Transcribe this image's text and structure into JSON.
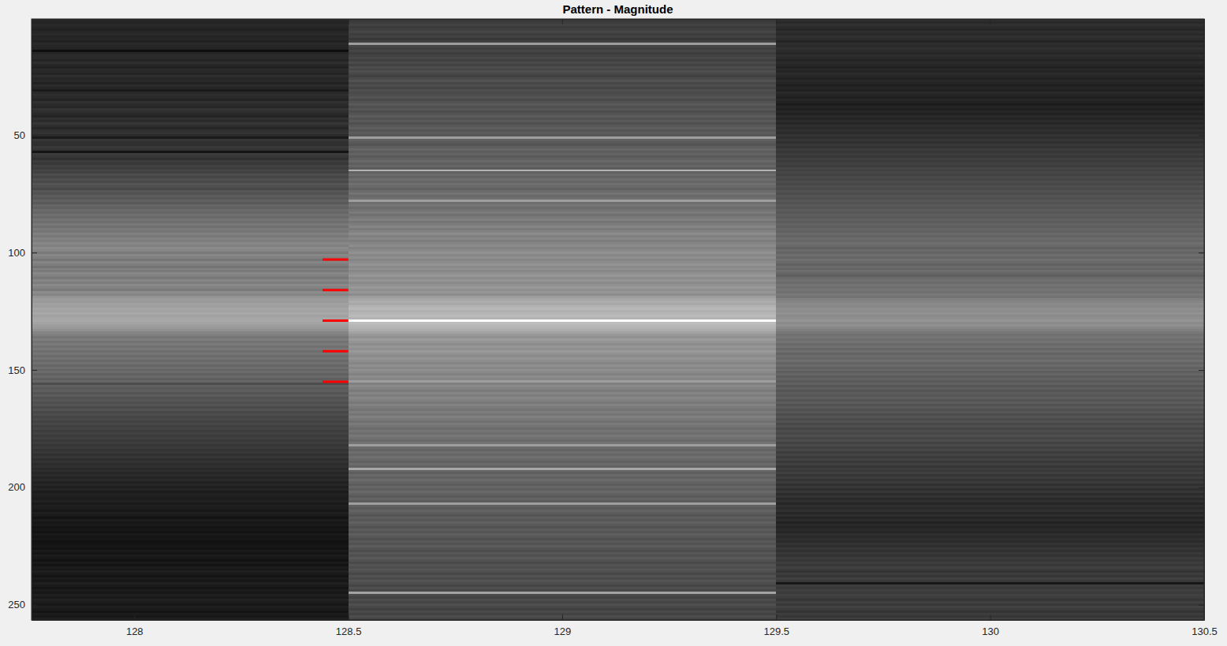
{
  "chart_data": {
    "type": "heatmap",
    "title": "Pattern - Magnitude",
    "color": "gray",
    "clim": [
      0,
      1
    ],
    "x": [
      128,
      129,
      130
    ],
    "y": [
      1,
      2,
      3,
      4,
      5,
      6,
      7,
      8,
      9,
      10,
      11,
      12,
      13,
      14,
      15,
      16,
      17,
      18,
      19,
      20,
      21,
      22,
      23,
      24,
      25,
      26,
      27,
      28,
      29,
      30,
      31,
      32,
      33,
      34,
      35,
      36,
      37,
      38,
      39,
      40,
      41,
      42,
      43,
      44,
      45,
      46,
      47,
      48,
      49,
      50,
      51,
      52,
      53,
      54,
      55,
      56,
      57,
      58,
      59,
      60,
      61,
      62,
      63,
      64,
      65,
      66,
      67,
      68,
      69,
      70,
      71,
      72,
      73,
      74,
      75,
      76,
      77,
      78,
      79,
      80,
      81,
      82,
      83,
      84,
      85,
      86,
      87,
      88,
      89,
      90,
      91,
      92,
      93,
      94,
      95,
      96,
      97,
      98,
      99,
      100,
      101,
      102,
      103,
      104,
      105,
      106,
      107,
      108,
      109,
      110,
      111,
      112,
      113,
      114,
      115,
      116,
      117,
      118,
      119,
      120,
      121,
      122,
      123,
      124,
      125,
      126,
      127,
      128,
      129,
      130,
      131,
      132,
      133,
      134,
      135,
      136,
      137,
      138,
      139,
      140,
      141,
      142,
      143,
      144,
      145,
      146,
      147,
      148,
      149,
      150,
      151,
      152,
      153,
      154,
      155,
      156,
      157,
      158,
      159,
      160,
      161,
      162,
      163,
      164,
      165,
      166,
      167,
      168,
      169,
      170,
      171,
      172,
      173,
      174,
      175,
      176,
      177,
      178,
      179,
      180,
      181,
      182,
      183,
      184,
      185,
      186,
      187,
      188,
      189,
      190,
      191,
      192,
      193,
      194,
      195,
      196,
      197,
      198,
      199,
      200,
      201,
      202,
      203,
      204,
      205,
      206,
      207,
      208,
      209,
      210,
      211,
      212,
      213,
      214,
      215,
      216,
      217,
      218,
      219,
      220,
      221,
      222,
      223,
      224,
      225,
      226,
      227,
      228,
      229,
      230,
      231,
      232,
      233,
      234,
      235,
      236,
      237,
      238,
      239,
      240,
      241,
      242,
      243,
      244,
      245,
      246,
      247,
      248,
      249,
      250,
      251,
      252,
      253,
      254,
      255,
      256
    ],
    "values": [
      [
        0.15,
        0.14,
        0.16,
        0.15,
        0.13,
        0.15,
        0.16,
        0.14,
        0.15,
        0.13,
        0.16,
        0.15,
        0.14,
        0.06,
        0.15,
        0.17,
        0.16,
        0.14,
        0.18,
        0.15,
        0.13,
        0.17,
        0.16,
        0.14,
        0.18,
        0.15,
        0.16,
        0.13,
        0.17,
        0.15,
        0.1,
        0.16,
        0.18,
        0.16,
        0.14,
        0.19,
        0.17,
        0.15,
        0.2,
        0.18,
        0.16,
        0.14,
        0.19,
        0.17,
        0.21,
        0.18,
        0.15,
        0.19,
        0.2,
        0.17,
        0.1,
        0.21,
        0.19,
        0.18,
        0.22,
        0.2,
        0.08,
        0.23,
        0.21,
        0.19,
        0.24,
        0.22,
        0.26,
        0.24,
        0.28,
        0.26,
        0.3,
        0.27,
        0.31,
        0.29,
        0.33,
        0.31,
        0.28,
        0.34,
        0.32,
        0.36,
        0.34,
        0.38,
        0.35,
        0.4,
        0.38,
        0.42,
        0.4,
        0.44,
        0.41,
        0.45,
        0.43,
        0.47,
        0.44,
        0.48,
        0.46,
        0.5,
        0.47,
        0.51,
        0.49,
        0.53,
        0.5,
        0.54,
        0.52,
        0.48,
        0.53,
        0.5,
        0.46,
        0.52,
        0.49,
        0.45,
        0.51,
        0.48,
        0.53,
        0.5,
        0.47,
        0.52,
        0.49,
        0.54,
        0.51,
        0.48,
        0.55,
        0.52,
        0.58,
        0.61,
        0.6,
        0.63,
        0.62,
        0.65,
        0.64,
        0.66,
        0.63,
        0.65,
        0.66,
        0.64,
        0.62,
        0.6,
        0.57,
        0.52,
        0.5,
        0.46,
        0.49,
        0.45,
        0.48,
        0.44,
        0.47,
        0.43,
        0.46,
        0.42,
        0.45,
        0.41,
        0.44,
        0.4,
        0.43,
        0.39,
        0.42,
        0.38,
        0.41,
        0.37,
        0.4,
        0.3,
        0.38,
        0.35,
        0.37,
        0.33,
        0.36,
        0.32,
        0.34,
        0.31,
        0.33,
        0.29,
        0.32,
        0.28,
        0.3,
        0.27,
        0.29,
        0.26,
        0.28,
        0.25,
        0.27,
        0.24,
        0.26,
        0.23,
        0.25,
        0.22,
        0.24,
        0.21,
        0.23,
        0.2,
        0.22,
        0.19,
        0.21,
        0.18,
        0.2,
        0.17,
        0.19,
        0.16,
        0.18,
        0.15,
        0.17,
        0.14,
        0.16,
        0.13,
        0.15,
        0.12,
        0.14,
        0.11,
        0.13,
        0.12,
        0.11,
        0.13,
        0.1,
        0.12,
        0.11,
        0.09,
        0.12,
        0.1,
        0.08,
        0.11,
        0.09,
        0.1,
        0.08,
        0.09,
        0.07,
        0.1,
        0.08,
        0.09,
        0.07,
        0.08,
        0.09,
        0.07,
        0.1,
        0.08,
        0.11,
        0.09,
        0.07,
        0.1,
        0.08,
        0.11,
        0.09,
        0.12,
        0.1,
        0.08,
        0.11,
        0.09,
        0.12,
        0.1,
        0.08,
        0.11,
        0.09,
        0.12,
        0.1,
        0.13,
        0.11,
        0.09,
        0.12,
        0.1,
        0.08,
        0.11,
        0.09,
        0.12
      ],
      [
        0.22,
        0.24,
        0.26,
        0.23,
        0.25,
        0.27,
        0.24,
        0.26,
        0.22,
        0.25,
        0.62,
        0.28,
        0.25,
        0.27,
        0.24,
        0.26,
        0.28,
        0.25,
        0.29,
        0.26,
        0.3,
        0.27,
        0.31,
        0.28,
        0.25,
        0.29,
        0.32,
        0.28,
        0.3,
        0.27,
        0.31,
        0.29,
        0.3,
        0.33,
        0.29,
        0.32,
        0.35,
        0.31,
        0.34,
        0.3,
        0.33,
        0.36,
        0.32,
        0.35,
        0.31,
        0.34,
        0.37,
        0.33,
        0.36,
        0.34,
        0.62,
        0.38,
        0.35,
        0.33,
        0.37,
        0.4,
        0.36,
        0.39,
        0.35,
        0.38,
        0.41,
        0.37,
        0.4,
        0.36,
        0.7,
        0.38,
        0.42,
        0.39,
        0.43,
        0.4,
        0.44,
        0.41,
        0.38,
        0.42,
        0.45,
        0.41,
        0.44,
        0.62,
        0.43,
        0.46,
        0.42,
        0.45,
        0.48,
        0.44,
        0.47,
        0.5,
        0.46,
        0.49,
        0.52,
        0.48,
        0.51,
        0.55,
        0.5,
        0.53,
        0.49,
        0.52,
        0.55,
        0.51,
        0.54,
        0.57,
        0.53,
        0.56,
        0.52,
        0.55,
        0.58,
        0.54,
        0.57,
        0.53,
        0.56,
        0.59,
        0.55,
        0.58,
        0.54,
        0.57,
        0.6,
        0.56,
        0.59,
        0.55,
        0.62,
        0.65,
        0.68,
        0.66,
        0.7,
        0.72,
        0.69,
        0.71,
        0.73,
        0.7,
        1.0,
        0.74,
        0.72,
        0.7,
        0.68,
        0.64,
        0.6,
        0.57,
        0.61,
        0.58,
        0.55,
        0.59,
        0.56,
        0.6,
        0.57,
        0.54,
        0.58,
        0.55,
        0.52,
        0.56,
        0.53,
        0.57,
        0.54,
        0.51,
        0.55,
        0.52,
        0.62,
        0.5,
        0.54,
        0.51,
        0.48,
        0.52,
        0.49,
        0.53,
        0.5,
        0.47,
        0.51,
        0.48,
        0.45,
        0.49,
        0.46,
        0.5,
        0.47,
        0.44,
        0.48,
        0.45,
        0.42,
        0.46,
        0.43,
        0.47,
        0.44,
        0.41,
        0.45,
        0.62,
        0.42,
        0.39,
        0.43,
        0.4,
        0.44,
        0.41,
        0.38,
        0.42,
        0.39,
        0.66,
        0.4,
        0.37,
        0.41,
        0.38,
        0.42,
        0.39,
        0.36,
        0.4,
        0.37,
        0.41,
        0.38,
        0.35,
        0.39,
        0.36,
        0.62,
        0.38,
        0.35,
        0.39,
        0.36,
        0.33,
        0.37,
        0.34,
        0.38,
        0.35,
        0.32,
        0.36,
        0.33,
        0.37,
        0.34,
        0.31,
        0.35,
        0.32,
        0.36,
        0.33,
        0.3,
        0.34,
        0.31,
        0.35,
        0.32,
        0.29,
        0.33,
        0.3,
        0.34,
        0.31,
        0.28,
        0.32,
        0.29,
        0.33,
        0.3,
        0.27,
        0.31,
        0.28,
        0.64,
        0.29,
        0.26,
        0.3,
        0.27,
        0.31,
        0.28,
        0.25,
        0.29,
        0.26,
        0.3,
        0.27
      ],
      [
        0.18,
        0.16,
        0.19,
        0.17,
        0.15,
        0.18,
        0.16,
        0.19,
        0.17,
        0.14,
        0.18,
        0.16,
        0.19,
        0.17,
        0.15,
        0.18,
        0.16,
        0.14,
        0.17,
        0.15,
        0.13,
        0.16,
        0.14,
        0.17,
        0.15,
        0.13,
        0.16,
        0.14,
        0.12,
        0.15,
        0.13,
        0.16,
        0.14,
        0.12,
        0.15,
        0.13,
        0.11,
        0.14,
        0.12,
        0.15,
        0.13,
        0.16,
        0.14,
        0.17,
        0.15,
        0.18,
        0.16,
        0.19,
        0.17,
        0.2,
        0.18,
        0.21,
        0.19,
        0.22,
        0.2,
        0.23,
        0.21,
        0.24,
        0.22,
        0.25,
        0.23,
        0.26,
        0.24,
        0.27,
        0.25,
        0.28,
        0.26,
        0.29,
        0.27,
        0.3,
        0.28,
        0.31,
        0.29,
        0.32,
        0.3,
        0.33,
        0.31,
        0.34,
        0.32,
        0.35,
        0.33,
        0.36,
        0.34,
        0.37,
        0.35,
        0.38,
        0.36,
        0.39,
        0.37,
        0.4,
        0.38,
        0.41,
        0.39,
        0.42,
        0.4,
        0.43,
        0.41,
        0.38,
        0.42,
        0.39,
        0.43,
        0.4,
        0.44,
        0.41,
        0.38,
        0.42,
        0.39,
        0.43,
        0.4,
        0.37,
        0.41,
        0.44,
        0.42,
        0.45,
        0.43,
        0.46,
        0.44,
        0.47,
        0.45,
        0.5,
        0.52,
        0.54,
        0.53,
        0.56,
        0.55,
        0.57,
        0.54,
        0.56,
        0.58,
        0.55,
        0.57,
        0.53,
        0.5,
        0.47,
        0.44,
        0.46,
        0.43,
        0.45,
        0.41,
        0.44,
        0.4,
        0.43,
        0.39,
        0.42,
        0.4,
        0.43,
        0.39,
        0.42,
        0.38,
        0.41,
        0.37,
        0.4,
        0.36,
        0.39,
        0.35,
        0.38,
        0.34,
        0.37,
        0.33,
        0.36,
        0.34,
        0.37,
        0.33,
        0.36,
        0.32,
        0.35,
        0.31,
        0.34,
        0.3,
        0.33,
        0.29,
        0.32,
        0.28,
        0.31,
        0.27,
        0.3,
        0.28,
        0.31,
        0.27,
        0.3,
        0.26,
        0.29,
        0.25,
        0.28,
        0.24,
        0.27,
        0.23,
        0.26,
        0.22,
        0.25,
        0.21,
        0.24,
        0.22,
        0.25,
        0.21,
        0.24,
        0.2,
        0.23,
        0.19,
        0.22,
        0.18,
        0.21,
        0.17,
        0.2,
        0.16,
        0.19,
        0.15,
        0.18,
        0.16,
        0.19,
        0.15,
        0.18,
        0.14,
        0.17,
        0.13,
        0.16,
        0.14,
        0.17,
        0.15,
        0.18,
        0.16,
        0.19,
        0.17,
        0.2,
        0.18,
        0.21,
        0.19,
        0.22,
        0.2,
        0.23,
        0.21,
        0.24,
        0.22,
        0.25,
        0.23,
        0.2,
        0.24,
        0.21,
        0.25,
        0.22,
        0.09,
        0.24,
        0.22,
        0.25,
        0.23,
        0.26,
        0.24,
        0.21,
        0.25,
        0.22,
        0.26,
        0.23,
        0.2,
        0.24,
        0.21,
        0.25
      ]
    ],
    "xlim": [
      127.76,
      130.5
    ],
    "xticks": [
      128,
      128.5,
      129,
      129.5,
      130,
      130.5
    ],
    "ylim": [
      0.5,
      256.5
    ],
    "yticks": [
      50,
      100,
      150,
      200,
      250
    ],
    "markers": {
      "y": [
        103,
        116,
        129,
        142,
        155
      ],
      "x_span": [
        128.44,
        128.5
      ],
      "color": "red"
    }
  }
}
